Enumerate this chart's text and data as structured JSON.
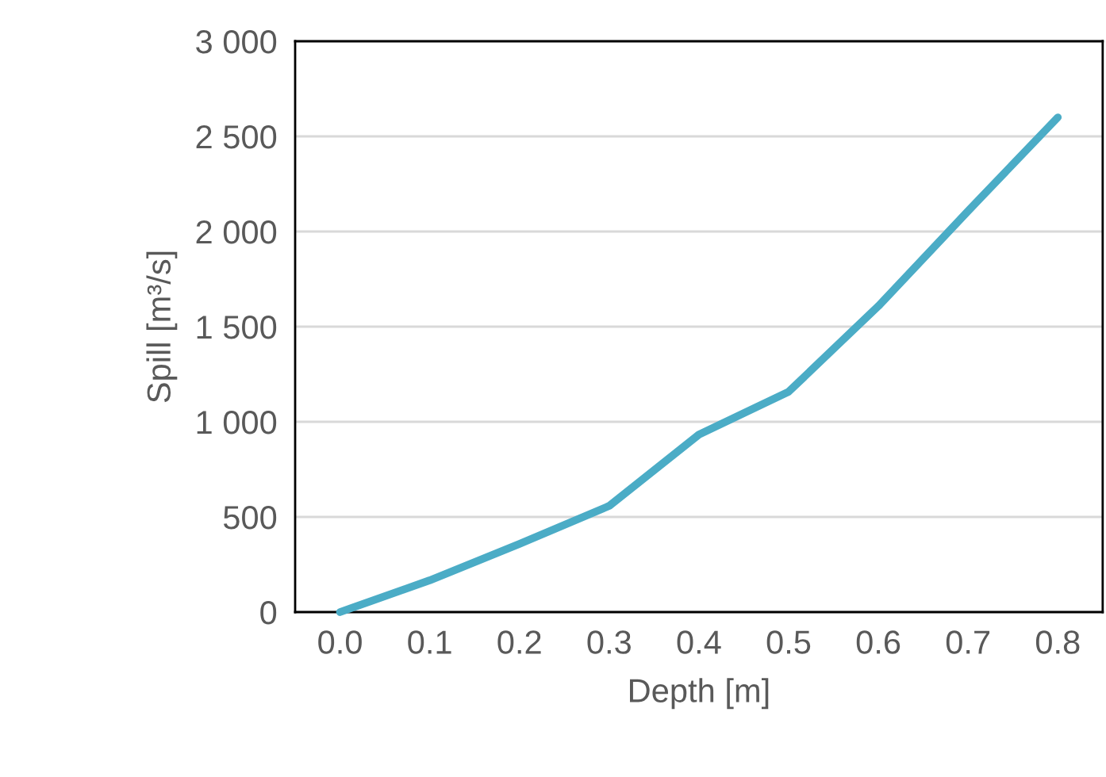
{
  "chart_data": {
    "type": "line",
    "xlabel": "Depth [m]",
    "ylabel": "Spill [m³/s]",
    "categories": [
      "0.0",
      "0.1",
      "0.2",
      "0.3",
      "0.4",
      "0.5",
      "0.6",
      "0.7",
      "0.8"
    ],
    "series": [
      {
        "color": "#4bacc6",
        "values": [
          0,
          167,
          358,
          558,
          933,
          1158,
          1608,
          2108,
          2600
        ]
      }
    ],
    "ylim": [
      0,
      3000
    ],
    "yticks": [
      0,
      500,
      {
        "value": 1000,
        "label": "1 000"
      },
      {
        "value": 1500,
        "label": "1 500"
      },
      {
        "value": 2000,
        "label": "2 000"
      },
      {
        "value": 2500,
        "label": "2 500"
      },
      {
        "value": 3000,
        "label": "3 000"
      }
    ],
    "grid": "y",
    "legend": false,
    "marker": "none",
    "line_style": "solid"
  }
}
